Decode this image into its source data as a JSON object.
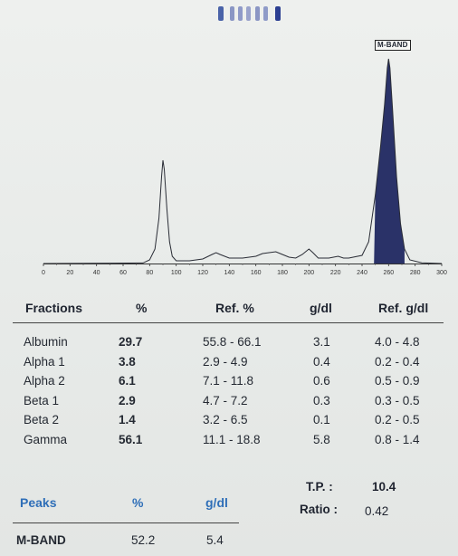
{
  "gel_bands": [
    {
      "pos": 0.05,
      "color": "#4a63a8"
    },
    {
      "pos": 0.22,
      "color": "#8a96c4"
    },
    {
      "pos": 0.34,
      "color": "#8f9ac8"
    },
    {
      "pos": 0.46,
      "color": "#9aa3cc"
    },
    {
      "pos": 0.58,
      "color": "#8b96c4"
    },
    {
      "pos": 0.7,
      "color": "#8f9bc8"
    },
    {
      "pos": 0.88,
      "color": "#2c3f92"
    }
  ],
  "chart_data": {
    "type": "line",
    "xlim": [
      0,
      300
    ],
    "ticks": [
      "0",
      "20",
      "40",
      "60",
      "80",
      "100",
      "120",
      "140",
      "160",
      "180",
      "200",
      "220",
      "240",
      "260",
      "280",
      "300"
    ],
    "trace": [
      [
        0,
        0
      ],
      [
        75,
        0.3
      ],
      [
        80,
        2
      ],
      [
        84,
        8
      ],
      [
        87,
        25
      ],
      [
        89,
        48
      ],
      [
        90,
        57
      ],
      [
        91,
        52
      ],
      [
        93,
        30
      ],
      [
        95,
        12
      ],
      [
        97,
        4
      ],
      [
        100,
        1.5
      ],
      [
        110,
        1.5
      ],
      [
        120,
        2.5
      ],
      [
        127,
        5
      ],
      [
        130,
        6
      ],
      [
        133,
        5
      ],
      [
        140,
        3
      ],
      [
        150,
        3
      ],
      [
        160,
        4
      ],
      [
        165,
        5.5
      ],
      [
        170,
        6
      ],
      [
        175,
        6.5
      ],
      [
        180,
        5
      ],
      [
        185,
        3.5
      ],
      [
        190,
        3
      ],
      [
        195,
        5
      ],
      [
        200,
        8
      ],
      [
        203,
        6
      ],
      [
        207,
        3
      ],
      [
        215,
        3
      ],
      [
        222,
        4
      ],
      [
        226,
        3
      ],
      [
        230,
        3
      ],
      [
        240,
        4.5
      ],
      [
        245,
        12
      ],
      [
        250,
        38
      ],
      [
        254,
        65
      ],
      [
        257,
        88
      ],
      [
        259,
        108
      ],
      [
        260,
        113
      ],
      [
        261,
        108
      ],
      [
        263,
        85
      ],
      [
        266,
        48
      ],
      [
        269,
        22
      ],
      [
        272,
        8
      ],
      [
        276,
        2
      ],
      [
        285,
        0.4
      ],
      [
        300,
        0
      ]
    ],
    "peak_label": "M-BAND",
    "shaded_range": [
      249,
      272
    ],
    "shade_color": "#2a3268"
  },
  "table": {
    "headers": {
      "fraction": "Fractions",
      "pct": "%",
      "ref_pct": "Ref. %",
      "gdl": "g/dl",
      "ref_gdl": "Ref. g/dl"
    },
    "rows": [
      {
        "name": "Albumin",
        "pct": "29.7",
        "ref_pct": "55.8 - 66.1",
        "gdl": "3.1",
        "ref_gdl": "4.0 -  4.8"
      },
      {
        "name": "Alpha 1",
        "pct": "3.8",
        "ref_pct": "2.9 -  4.9",
        "gdl": "0.4",
        "ref_gdl": "0.2 -  0.4"
      },
      {
        "name": "Alpha 2",
        "pct": "6.1",
        "ref_pct": "7.1 - 11.8",
        "gdl": "0.6",
        "ref_gdl": "0.5 -  0.9"
      },
      {
        "name": "Beta 1",
        "pct": "2.9",
        "ref_pct": "4.7 -  7.2",
        "gdl": "0.3",
        "ref_gdl": "0.3 -  0.5"
      },
      {
        "name": "Beta 2",
        "pct": "1.4",
        "ref_pct": "3.2 -  6.5",
        "gdl": "0.1",
        "ref_gdl": "0.2 -  0.5"
      },
      {
        "name": "Gamma",
        "pct": "56.1",
        "ref_pct": "11.1 - 18.8",
        "gdl": "5.8",
        "ref_gdl": "0.8 -  1.4"
      }
    ]
  },
  "totals": {
    "tp_label": "T.P.  :",
    "tp_value": "10.4",
    "ratio_label": "Ratio :",
    "ratio_value": "0.42"
  },
  "peaks": {
    "headers": {
      "name": "Peaks",
      "pct": "%",
      "gdl": "g/dl"
    },
    "rows": [
      {
        "name": "M-BAND",
        "pct": "52.2",
        "gdl": "5.4"
      }
    ]
  }
}
